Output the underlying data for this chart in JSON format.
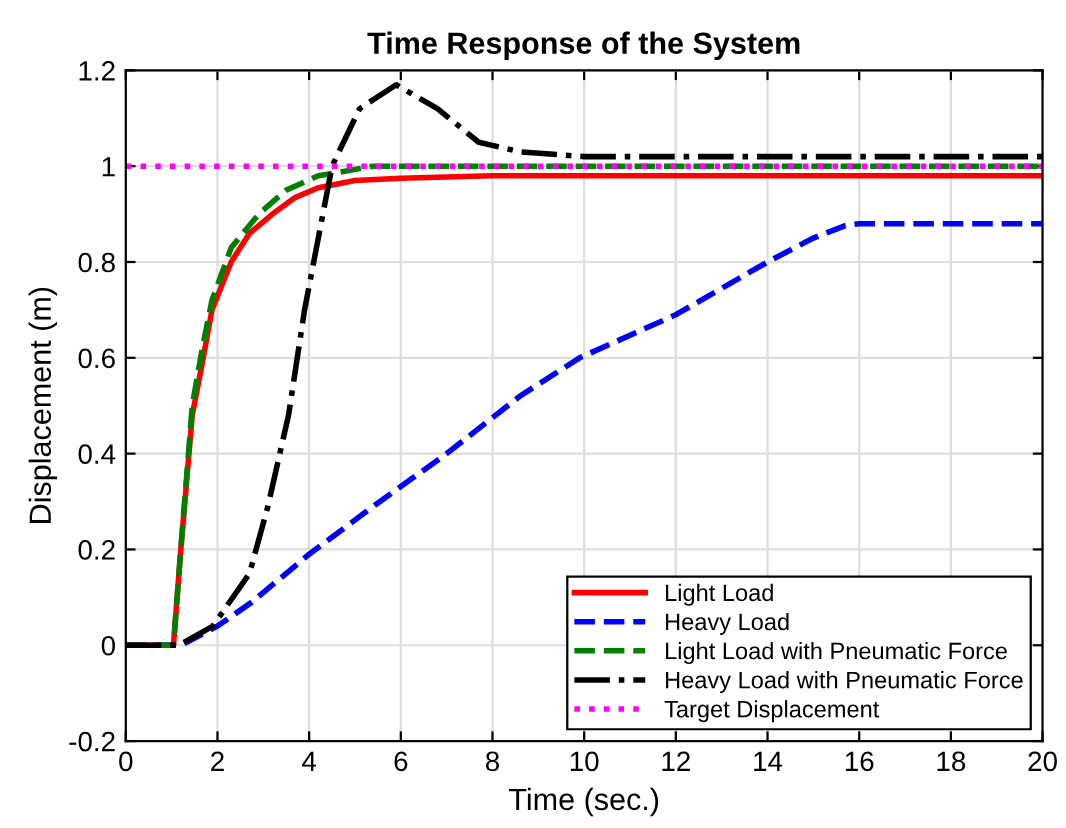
{
  "chart_data": {
    "type": "line",
    "title": "Time Response of the System",
    "xlabel": "Time (sec.)",
    "ylabel": "Displacement (m)",
    "xlim": [
      0,
      20
    ],
    "ylim": [
      -0.2,
      1.2
    ],
    "xticks": [
      0,
      2,
      4,
      6,
      8,
      10,
      12,
      14,
      16,
      18,
      20
    ],
    "yticks": [
      -0.2,
      0,
      0.2,
      0.4,
      0.6,
      0.8,
      1,
      1.2
    ],
    "grid": true,
    "legend": "bottom right",
    "series": [
      {
        "name": "Light Load",
        "color": "#ff0000",
        "line_style": "solid",
        "x": [
          0,
          1.04,
          1.2,
          1.45,
          1.67,
          1.88,
          2.3,
          2.7,
          3.2,
          3.7,
          4.2,
          5,
          6,
          8,
          20
        ],
        "values": [
          0,
          0,
          0.2,
          0.48,
          0.59,
          0.7,
          0.8,
          0.86,
          0.9,
          0.935,
          0.955,
          0.97,
          0.975,
          0.98,
          0.98
        ]
      },
      {
        "name": "Heavy Load",
        "color": "#0000ff",
        "line_style": "dashed",
        "x": [
          0,
          1.2,
          2,
          2.75,
          4,
          5.4,
          7,
          8.6,
          9.9,
          12,
          14,
          15,
          15.7,
          16,
          20
        ],
        "values": [
          0,
          0,
          0.04,
          0.09,
          0.19,
          0.29,
          0.4,
          0.52,
          0.6,
          0.69,
          0.8,
          0.85,
          0.876,
          0.88,
          0.88
        ]
      },
      {
        "name": "Light Load with Pneumatic Force",
        "color": "#008000",
        "line_style": "dashed",
        "x": [
          0,
          1.04,
          1.2,
          1.45,
          1.67,
          1.88,
          2.3,
          2.9,
          3.5,
          4.2,
          5.4,
          7,
          20
        ],
        "values": [
          0,
          0,
          0.2,
          0.5,
          0.62,
          0.72,
          0.83,
          0.9,
          0.95,
          0.98,
          1.0,
          1.0,
          1.0
        ]
      },
      {
        "name": "Heavy Load with Pneumatic Force",
        "color": "#000000",
        "line_style": "dashdot",
        "x": [
          0,
          1.16,
          1.9,
          2.7,
          3.1,
          3.55,
          3.9,
          4.3,
          4.5,
          5.1,
          5.9,
          6.8,
          7.7,
          8.6,
          10,
          20
        ],
        "values": [
          0,
          0,
          0.04,
          0.15,
          0.29,
          0.48,
          0.7,
          0.9,
          1.0,
          1.12,
          1.17,
          1.12,
          1.05,
          1.03,
          1.02,
          1.02
        ]
      },
      {
        "name": "Target Displacement",
        "color": "#ff00ff",
        "line_style": "dotted",
        "x": [
          0,
          20
        ],
        "values": [
          1,
          1
        ]
      }
    ]
  }
}
